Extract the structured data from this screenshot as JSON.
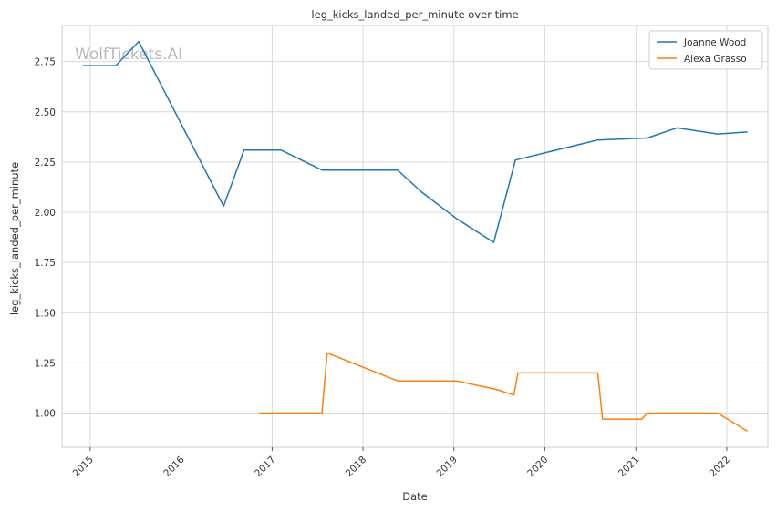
{
  "chart_data": {
    "type": "line",
    "title": "leg_kicks_landed_per_minute over time",
    "xlabel": "Date",
    "ylabel": "leg_kicks_landed_per_minute",
    "watermark": "WolfTickets.AI",
    "grid": true,
    "legend_position": "top-right",
    "xlim": [
      "2014-09-10",
      "2022-06-15"
    ],
    "ylim": [
      0.83,
      2.93
    ],
    "x_ticks": [
      {
        "date": "2015-01-01",
        "label": "2015"
      },
      {
        "date": "2016-01-01",
        "label": "2016"
      },
      {
        "date": "2017-01-01",
        "label": "2017"
      },
      {
        "date": "2018-01-01",
        "label": "2018"
      },
      {
        "date": "2019-01-01",
        "label": "2019"
      },
      {
        "date": "2020-01-01",
        "label": "2020"
      },
      {
        "date": "2021-01-01",
        "label": "2021"
      },
      {
        "date": "2022-01-01",
        "label": "2022"
      }
    ],
    "y_ticks": [
      {
        "value": 1.0,
        "label": "1.00"
      },
      {
        "value": 1.25,
        "label": "1.25"
      },
      {
        "value": 1.5,
        "label": "1.50"
      },
      {
        "value": 1.75,
        "label": "1.75"
      },
      {
        "value": 2.0,
        "label": "2.00"
      },
      {
        "value": 2.25,
        "label": "2.25"
      },
      {
        "value": 2.5,
        "label": "2.50"
      },
      {
        "value": 2.75,
        "label": "2.75"
      }
    ],
    "series": [
      {
        "name": "Joanne Wood",
        "color": "#1f77b4",
        "points": [
          {
            "x": "2014-12-01",
            "y": 2.73
          },
          {
            "x": "2015-04-14",
            "y": 2.73
          },
          {
            "x": "2015-07-15",
            "y": 2.85
          },
          {
            "x": "2016-06-20",
            "y": 2.03
          },
          {
            "x": "2016-09-10",
            "y": 2.31
          },
          {
            "x": "2017-02-05",
            "y": 2.31
          },
          {
            "x": "2017-07-20",
            "y": 2.21
          },
          {
            "x": "2018-05-20",
            "y": 2.21
          },
          {
            "x": "2018-08-25",
            "y": 2.1
          },
          {
            "x": "2019-01-10",
            "y": 1.97
          },
          {
            "x": "2019-06-10",
            "y": 1.85
          },
          {
            "x": "2019-09-05",
            "y": 2.26
          },
          {
            "x": "2020-08-01",
            "y": 2.36
          },
          {
            "x": "2021-02-15",
            "y": 2.37
          },
          {
            "x": "2021-06-15",
            "y": 2.42
          },
          {
            "x": "2021-11-25",
            "y": 2.39
          },
          {
            "x": "2022-03-25",
            "y": 2.4
          }
        ]
      },
      {
        "name": "Alexa Grasso",
        "color": "#ff7f0e",
        "points": [
          {
            "x": "2016-11-10",
            "y": 1.0
          },
          {
            "x": "2017-07-20",
            "y": 1.0
          },
          {
            "x": "2017-08-10",
            "y": 1.3
          },
          {
            "x": "2018-05-20",
            "y": 1.16
          },
          {
            "x": "2019-01-10",
            "y": 1.16
          },
          {
            "x": "2019-06-15",
            "y": 1.12
          },
          {
            "x": "2019-08-30",
            "y": 1.09
          },
          {
            "x": "2019-09-15",
            "y": 1.2
          },
          {
            "x": "2020-08-01",
            "y": 1.2
          },
          {
            "x": "2020-08-20",
            "y": 0.97
          },
          {
            "x": "2021-01-25",
            "y": 0.97
          },
          {
            "x": "2021-02-15",
            "y": 1.0
          },
          {
            "x": "2021-11-25",
            "y": 1.0
          },
          {
            "x": "2022-03-25",
            "y": 0.91
          }
        ]
      }
    ]
  }
}
